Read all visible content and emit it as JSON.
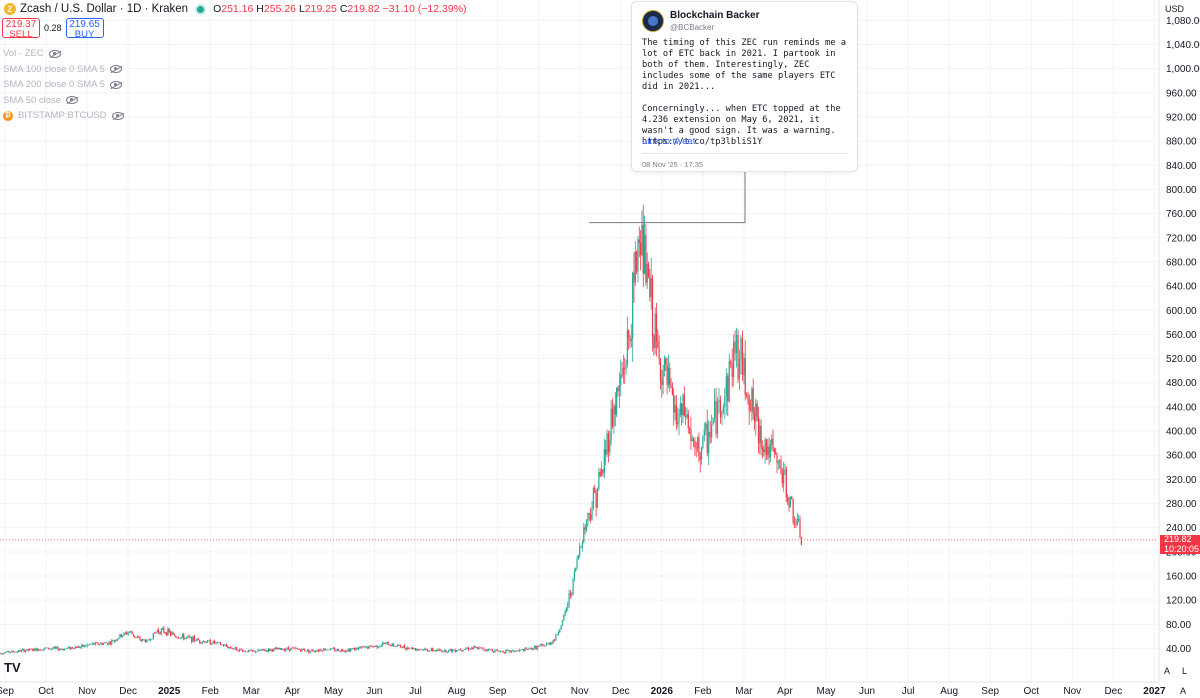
{
  "header": {
    "title": "Zcash / U.S. Dollar · 1D · Kraken",
    "open_label": "O",
    "open": "251.16",
    "high_label": "H",
    "high": "255.26",
    "low_label": "L",
    "low": "219.25",
    "close_label": "C",
    "close": "219.82",
    "change": "−31.10 (−12.39%)",
    "sell_price": "219.37",
    "sell_label": "SELL",
    "spread": "0.28",
    "buy_price": "219.65",
    "buy_label": "BUY"
  },
  "legend": [
    {
      "label": "Vol · ZEC"
    },
    {
      "label": "SMA 100 close 0 SMA 5"
    },
    {
      "label": "SMA 200 close 0 SMA 5"
    },
    {
      "label": "SMA 50 close"
    },
    {
      "label": "BITSTAMP:BTCUSD"
    }
  ],
  "currency_label": "USD",
  "current_price_label": "219.82",
  "countdown": "10:20:05",
  "scale_buttons": {
    "a": "A",
    "l": "L",
    "auto": "A"
  },
  "logo_text": "TV",
  "tweet": {
    "name": "Blockchain Backer",
    "handle": "@BCBacker",
    "text": "The timing of this ZEC run reminds me a lot of ETC back in 2021. I partook in both of them. Interestingly, ZEC includes some of the same players ETC did in 2021...\n\nConcerningly... when ETC topped at the 4.236 extension on May 6, 2021, it wasn't a good sign. It was a warning. https://t.co/tp3lbliS1Y",
    "link": "Link to tweet",
    "date": "08 Nov '25 · 17:35"
  },
  "colors": {
    "up": "#22ab94",
    "down": "#f23645",
    "grid": "#f0f3fa",
    "accent": "#2962ff"
  },
  "chart_data": {
    "type": "candlestick",
    "symbol": "Zcash / U.S. Dollar",
    "interval": "1D",
    "ylim": [
      20,
      1100
    ],
    "y_ticks": [
      40,
      80,
      120,
      160,
      200,
      240,
      280,
      320,
      360,
      400,
      440,
      480,
      520,
      560,
      600,
      640,
      680,
      720,
      760,
      800,
      840,
      880,
      920,
      960,
      1000,
      1040,
      1080
    ],
    "x_ticks": [
      "Sep",
      "Oct",
      "Nov",
      "Dec",
      "2025",
      "Feb",
      "Mar",
      "Apr",
      "May",
      "Jun",
      "Jul",
      "Aug",
      "Sep",
      "Oct",
      "Nov",
      "Dec",
      "2026",
      "Feb",
      "Mar",
      "Apr",
      "May",
      "Jun",
      "Jul",
      "Aug",
      "Sep",
      "Oct",
      "Nov",
      "Dec",
      "2027"
    ],
    "x_ticks_bold": [
      "2025",
      "2026",
      "2027"
    ],
    "current_price": 219.82,
    "weekly_closes": {
      "start": "2024-08-26",
      "step_days": 7,
      "values": [
        32,
        34,
        35,
        37,
        38,
        40,
        40,
        39,
        42,
        43,
        47,
        48,
        50,
        60,
        68,
        55,
        52,
        70,
        68,
        60,
        58,
        55,
        52,
        50,
        45,
        40,
        36,
        35,
        37,
        38,
        39,
        40,
        38,
        36,
        38,
        39,
        37,
        38,
        40,
        42,
        44,
        48,
        45,
        42,
        40,
        38,
        37,
        36,
        37,
        39,
        41,
        40,
        38,
        36,
        35,
        36,
        38,
        42,
        45,
        55,
        90,
        150,
        230,
        280,
        330,
        420,
        480,
        560,
        740,
        640,
        520,
        480,
        420,
        430,
        360,
        380,
        420,
        460,
        540,
        490,
        420,
        380,
        360,
        330,
        270,
        220
      ]
    },
    "annotation": {
      "type": "tweet",
      "anchor_date": "2025-11-08",
      "anchor_price": 745
    }
  }
}
